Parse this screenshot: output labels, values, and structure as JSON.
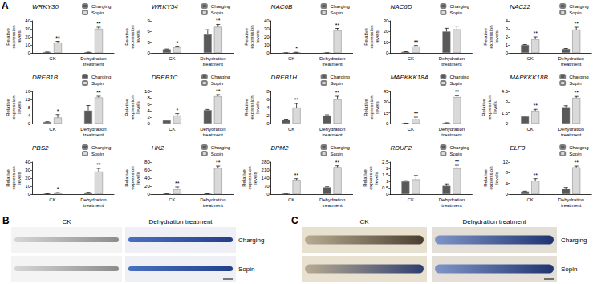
{
  "panel_label": "A",
  "chart_data": [
    {
      "type": "bar",
      "title": "WRKY30",
      "y_label": "Relative expression levels",
      "categories": [
        "CK",
        "Dehydration treatment"
      ],
      "ylim": [
        0,
        40
      ],
      "yticks": [
        0,
        10,
        20,
        30,
        40
      ],
      "grid": false,
      "legend": "top right",
      "series": [
        {
          "name": "Charging",
          "color": "#595959",
          "values": [
            1,
            0.8
          ],
          "errors": [
            0.1,
            0.1
          ]
        },
        {
          "name": "Sopin",
          "color": "#d9d9d9",
          "values": [
            13,
            30
          ],
          "errors": [
            1.5,
            2
          ],
          "annotations": [
            "**",
            "**"
          ]
        }
      ]
    },
    {
      "type": "bar",
      "title": "WRKY54",
      "y_label": "Relative expression levels",
      "categories": [
        "CK",
        "Dehydration treatment"
      ],
      "ylim": [
        0,
        9
      ],
      "yticks": [
        0,
        3,
        6,
        9
      ],
      "grid": false,
      "legend": "top right",
      "series": [
        {
          "name": "Charging",
          "color": "#595959",
          "values": [
            1,
            5.2
          ],
          "errors": [
            0.1,
            1.3
          ]
        },
        {
          "name": "Sopin",
          "color": "#d9d9d9",
          "values": [
            1.6,
            7.3
          ],
          "errors": [
            0.3,
            0.7
          ],
          "annotations": [
            "*",
            "**"
          ]
        }
      ]
    },
    {
      "type": "bar",
      "title": "NAC6B",
      "y_label": "Relative expression levels",
      "categories": [
        "CK",
        "Dehydration treatment"
      ],
      "ylim": [
        0,
        40
      ],
      "yticks": [
        0,
        10,
        20,
        30,
        40
      ],
      "grid": false,
      "legend": "top right",
      "series": [
        {
          "name": "Charging",
          "color": "#595959",
          "values": [
            0.1,
            0.1
          ],
          "errors": [
            0.02,
            0.02
          ]
        },
        {
          "name": "Sopin",
          "color": "#d9d9d9",
          "values": [
            0.6,
            28
          ],
          "errors": [
            0.2,
            2.5
          ],
          "annotations": [
            "*",
            "**"
          ]
        }
      ]
    },
    {
      "type": "bar",
      "title": "NAC6D",
      "y_label": "Relative expression levels",
      "categories": [
        "CK",
        "Dehydration treatment"
      ],
      "ylim": [
        0,
        30
      ],
      "yticks": [
        0,
        10,
        20,
        30
      ],
      "grid": false,
      "legend": "top right",
      "series": [
        {
          "name": "Charging",
          "color": "#595959",
          "values": [
            1,
            20
          ],
          "errors": [
            0.1,
            3
          ]
        },
        {
          "name": "Sopin",
          "color": "#d9d9d9",
          "values": [
            6,
            22
          ],
          "errors": [
            1,
            3
          ],
          "annotations": [
            "**",
            null
          ]
        }
      ]
    },
    {
      "type": "bar",
      "title": "NAC22",
      "y_label": "Relative expression levels",
      "categories": [
        "CK",
        "Dehydration treatment"
      ],
      "ylim": [
        0,
        4
      ],
      "yticks": [
        0,
        1,
        2,
        3,
        4
      ],
      "grid": false,
      "legend": "top right",
      "series": [
        {
          "name": "Charging",
          "color": "#595959",
          "values": [
            1,
            0.5
          ],
          "errors": [
            0.05,
            0.05
          ]
        },
        {
          "name": "Sopin",
          "color": "#d9d9d9",
          "values": [
            1.7,
            2.9
          ],
          "errors": [
            0.3,
            0.3
          ],
          "annotations": [
            "**",
            "**"
          ]
        }
      ]
    },
    {
      "type": "bar",
      "title": "DREB1B",
      "y_label": "Relative expression levels",
      "categories": [
        "CK",
        "Dehydration treatment"
      ],
      "ylim": [
        0,
        16
      ],
      "yticks": [
        0,
        4,
        8,
        12,
        16
      ],
      "grid": false,
      "legend": "top right",
      "series": [
        {
          "name": "Charging",
          "color": "#595959",
          "values": [
            0.8,
            6.5
          ],
          "errors": [
            0.1,
            2.5
          ]
        },
        {
          "name": "Sopin",
          "color": "#d9d9d9",
          "values": [
            3,
            13
          ],
          "errors": [
            1.5,
            0.6
          ],
          "annotations": [
            "*",
            "**"
          ]
        }
      ]
    },
    {
      "type": "bar",
      "title": "DREB1C",
      "y_label": "Relative expression levels",
      "categories": [
        "CK",
        "Dehydration treatment"
      ],
      "ylim": [
        0,
        10
      ],
      "yticks": [
        0,
        2,
        4,
        6,
        8,
        10
      ],
      "grid": false,
      "legend": "top right",
      "series": [
        {
          "name": "Charging",
          "color": "#595959",
          "values": [
            1,
            4.2
          ],
          "errors": [
            0.1,
            0.2
          ]
        },
        {
          "name": "Sopin",
          "color": "#d9d9d9",
          "values": [
            2.5,
            8.5
          ],
          "errors": [
            0.6,
            0.5
          ],
          "annotations": [
            "*",
            "**"
          ]
        }
      ]
    },
    {
      "type": "bar",
      "title": "DREB1H",
      "y_label": "Relative expression levels",
      "categories": [
        "CK",
        "Dehydration treatment"
      ],
      "ylim": [
        0,
        8
      ],
      "yticks": [
        0,
        2,
        4,
        6,
        8
      ],
      "grid": false,
      "legend": "top right",
      "series": [
        {
          "name": "Charging",
          "color": "#595959",
          "values": [
            1,
            2
          ],
          "errors": [
            0.1,
            0.2
          ]
        },
        {
          "name": "Sopin",
          "color": "#d9d9d9",
          "values": [
            4,
            6
          ],
          "errors": [
            1,
            0.8
          ],
          "annotations": [
            "**",
            "**"
          ]
        }
      ]
    },
    {
      "type": "bar",
      "title": "MAPKKK18A",
      "y_label": "Relative expression levels",
      "categories": [
        "CK",
        "Dehydration treatment"
      ],
      "ylim": [
        0,
        45
      ],
      "yticks": [
        0,
        15,
        30,
        45
      ],
      "grid": false,
      "legend": "top right",
      "series": [
        {
          "name": "Charging",
          "color": "#595959",
          "values": [
            0.5,
            1
          ],
          "errors": [
            0.1,
            0.2
          ]
        },
        {
          "name": "Sopin",
          "color": "#d9d9d9",
          "values": [
            6,
            37
          ],
          "errors": [
            3,
            2
          ],
          "annotations": [
            "**",
            "**"
          ]
        }
      ]
    },
    {
      "type": "bar",
      "title": "MAPKKK18B",
      "y_label": "Relative expression levels",
      "categories": [
        "CK",
        "Dehydration treatment"
      ],
      "ylim": [
        0,
        4.5
      ],
      "yticks": [
        0,
        1.5,
        3,
        4.5
      ],
      "grid": false,
      "legend": "top right",
      "series": [
        {
          "name": "Charging",
          "color": "#595959",
          "values": [
            1,
            2.3
          ],
          "errors": [
            0.05,
            0.2
          ]
        },
        {
          "name": "Sopin",
          "color": "#d9d9d9",
          "values": [
            1.8,
            3.6
          ],
          "errors": [
            0.2,
            0.2
          ],
          "annotations": [
            "**",
            "**"
          ]
        }
      ]
    },
    {
      "type": "bar",
      "title": "PBS2",
      "y_label": "Relative expression levels",
      "categories": [
        "CK",
        "Dehydration treatment"
      ],
      "ylim": [
        0,
        40
      ],
      "yticks": [
        0,
        10,
        20,
        30,
        40
      ],
      "grid": false,
      "legend": "top right",
      "series": [
        {
          "name": "Charging",
          "color": "#595959",
          "values": [
            0.5,
            2
          ],
          "errors": [
            0.1,
            0.3
          ]
        },
        {
          "name": "Sopin",
          "color": "#d9d9d9",
          "values": [
            1.5,
            28
          ],
          "errors": [
            0.5,
            4
          ],
          "annotations": [
            "*",
            "**"
          ]
        }
      ]
    },
    {
      "type": "bar",
      "title": "HK2",
      "y_label": "Relative expression levels",
      "categories": [
        "CK",
        "Dehydration treatment"
      ],
      "ylim": [
        0,
        80
      ],
      "yticks": [
        0,
        20,
        40,
        60,
        80
      ],
      "grid": false,
      "legend": "top right",
      "series": [
        {
          "name": "Charging",
          "color": "#595959",
          "values": [
            0.5,
            1
          ],
          "errors": [
            0.1,
            0.1
          ]
        },
        {
          "name": "Sopin",
          "color": "#d9d9d9",
          "values": [
            12,
            65
          ],
          "errors": [
            6,
            5
          ],
          "annotations": [
            "**",
            "**"
          ]
        }
      ]
    },
    {
      "type": "bar",
      "title": "BPM2",
      "y_label": "Relative expression levels",
      "categories": [
        "CK",
        "Dehydration treatment"
      ],
      "ylim": [
        0,
        280
      ],
      "yticks": [
        0,
        70,
        140,
        210,
        280
      ],
      "grid": false,
      "legend": "top right",
      "series": [
        {
          "name": "Charging",
          "color": "#595959",
          "values": [
            5,
            60
          ],
          "errors": [
            1,
            5
          ]
        },
        {
          "name": "Sopin",
          "color": "#d9d9d9",
          "values": [
            125,
            235
          ],
          "errors": [
            10,
            12
          ],
          "annotations": [
            "**",
            "**"
          ]
        }
      ]
    },
    {
      "type": "bar",
      "title": "RDUF2",
      "y_label": "Relative expression levels",
      "categories": [
        "CK",
        "Dehydration treatment"
      ],
      "ylim": [
        0,
        2.5
      ],
      "yticks": [
        0,
        0.5,
        1,
        1.5,
        2,
        2.5
      ],
      "grid": false,
      "legend": "top right",
      "series": [
        {
          "name": "Charging",
          "color": "#595959",
          "values": [
            1,
            0.65
          ],
          "errors": [
            0.05,
            0.15
          ]
        },
        {
          "name": "Sopin",
          "color": "#d9d9d9",
          "values": [
            1.15,
            2
          ],
          "errors": [
            0.3,
            0.25
          ],
          "annotations": [
            null,
            "**"
          ]
        }
      ]
    },
    {
      "type": "bar",
      "title": "ELF3",
      "y_label": "Relative expression levels",
      "categories": [
        "CK",
        "Dehydration treatment"
      ],
      "ylim": [
        0,
        12
      ],
      "yticks": [
        0,
        4,
        8,
        12
      ],
      "grid": false,
      "legend": "top right",
      "series": [
        {
          "name": "Charging",
          "color": "#595959",
          "values": [
            1,
            2
          ],
          "errors": [
            0.1,
            0.5
          ]
        },
        {
          "name": "Sopin",
          "color": "#d9d9d9",
          "values": [
            5,
            10
          ],
          "errors": [
            0.8,
            0.5
          ],
          "annotations": [
            "**",
            "**"
          ]
        }
      ]
    }
  ],
  "images": [
    {
      "label": "B",
      "columns": [
        "CK",
        "Dehydration treatment"
      ],
      "rows": [
        "Charging",
        "Sopin"
      ]
    },
    {
      "label": "C",
      "columns": [
        "CK",
        "Dehydration treatment"
      ],
      "rows": [
        "Charging",
        "Sopin"
      ]
    }
  ]
}
